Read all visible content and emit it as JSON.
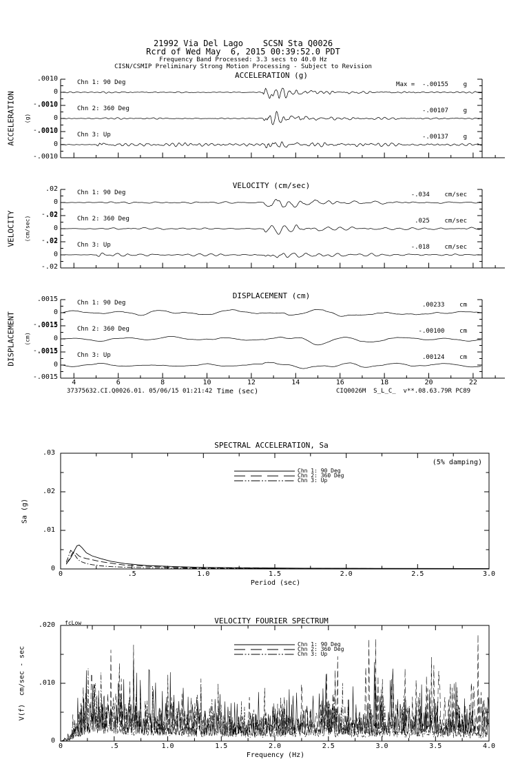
{
  "header": {
    "line1": "21992 Via Del Lago    SCSN Sta Q0026",
    "line2": "Rcrd of Wed May  6, 2015 00:39:52.0 PDT",
    "line3": "Frequency Band Processed: 3.3 secs to 40.0 Hz",
    "line4": "CISN/CSMIP Preliminary Strong Motion Processing - Subject to Revision"
  },
  "footer": {
    "left": "37375632.CI.Q0026.01. 05/06/15 01:21:42",
    "right": "CIQ0026M  S_L_C_  v**.08.63.79R PC89"
  },
  "time_axis": {
    "label": "Time (sec)",
    "major_ticks": [
      4,
      6,
      8,
      10,
      12,
      14,
      16,
      18,
      20,
      22
    ],
    "range_sec": [
      3.4,
      23.4
    ]
  },
  "chart_data": [
    {
      "id": "acceleration",
      "type": "line",
      "title": "ACCELERATION (g)",
      "ylabel": "ACCELERATION",
      "yunits": "(g)",
      "ytick_labels": [
        ".0010",
        "0",
        "-.0010"
      ],
      "ylim": [
        -0.001,
        0.001
      ],
      "channels": [
        {
          "label": "Chn 1: 90 Deg",
          "max_label": "Max =  -.00155    g",
          "max_value": -0.00155,
          "unit": "g",
          "synthesis": {
            "seed": 101,
            "f0": 3.2,
            "zeta": 0.15,
            "dt": 0.02,
            "base": 0.5,
            "bursts": [
              [
                5.1,
                0.5,
                4
              ],
              [
                12.52,
                13,
                0.8
              ],
              [
                12.6,
                2.4,
                6
              ]
            ]
          }
        },
        {
          "label": "Chn 2: 360 Deg",
          "max_label": "-.00107    g",
          "max_value": -0.00107,
          "unit": "g",
          "synthesis": {
            "seed": 102,
            "f0": 3.2,
            "zeta": 0.15,
            "dt": 0.02,
            "base": 0.5,
            "bursts": [
              [
                5.1,
                0.5,
                4
              ],
              [
                12.52,
                11,
                0.8
              ],
              [
                12.6,
                2.2,
                6
              ]
            ]
          }
        },
        {
          "label": "Chn 3: Up",
          "max_label": "-.00137    g",
          "max_value": -0.00137,
          "unit": "g",
          "synthesis": {
            "seed": 103,
            "f0": 3.4,
            "zeta": 0.15,
            "dt": 0.02,
            "base": 0.45,
            "bursts": [
              [
                5.02,
                12,
                0.3
              ],
              [
                5.05,
                1.7,
                25
              ],
              [
                12.6,
                6,
                0.8
              ],
              [
                12.6,
                1.3,
                6
              ]
            ]
          }
        }
      ]
    },
    {
      "id": "velocity",
      "type": "line",
      "title": "VELOCITY (cm/sec)",
      "ylabel": "VELOCITY",
      "yunits": "(cm/sec)",
      "ytick_labels": [
        ".02",
        "0",
        "-.02"
      ],
      "ylim": [
        -0.02,
        0.02
      ],
      "channels": [
        {
          "label": "Chn 1: 90 Deg",
          "max_label": "-.034    cm/sec",
          "max_value": -0.034,
          "unit": "cm/sec",
          "synthesis": {
            "seed": 201,
            "f0": 1.7,
            "zeta": 0.12,
            "dt": 0.02,
            "base": 0.5,
            "bursts": [
              [
                5.2,
                0.9,
                6
              ],
              [
                12.55,
                12,
                1.1
              ],
              [
                12.7,
                2.6,
                7
              ]
            ]
          }
        },
        {
          "label": "Chn 2: 360 Deg",
          "max_label": " .025    cm/sec",
          "max_value": 0.025,
          "unit": "cm/sec",
          "synthesis": {
            "seed": 202,
            "f0": 1.7,
            "zeta": 0.12,
            "dt": 0.02,
            "base": 0.5,
            "bursts": [
              [
                5.2,
                0.9,
                6
              ],
              [
                12.55,
                11,
                1.1
              ],
              [
                12.7,
                2.6,
                7
              ]
            ]
          }
        },
        {
          "label": "Chn 3: Up",
          "max_label": "-.018    cm/sec",
          "max_value": -0.018,
          "unit": "cm/sec",
          "synthesis": {
            "seed": 203,
            "f0": 2.0,
            "zeta": 0.13,
            "dt": 0.02,
            "base": 0.4,
            "bursts": [
              [
                5.02,
                10.5,
                0.35
              ],
              [
                5.05,
                1.4,
                10
              ],
              [
                12.6,
                6.5,
                0.9
              ],
              [
                12.7,
                1.7,
                7
              ]
            ]
          }
        }
      ]
    },
    {
      "id": "displacement",
      "type": "line",
      "title": "DISPLACEMENT (cm)",
      "ylabel": "DISPLACEMENT",
      "yunits": "(cm)",
      "ytick_labels": [
        ".0015",
        "0",
        "-.0015"
      ],
      "ylim": [
        -0.0015,
        0.0015
      ],
      "xlabel": "Time (sec)",
      "channels": [
        {
          "label": "Chn 1: 90 Deg",
          "max_label": " .00233    cm",
          "max_value": 0.00233,
          "unit": "cm",
          "synthesis": {
            "seed": 301,
            "f0": 0.42,
            "zeta": 0.3,
            "dt": 0.04,
            "base": 3.5,
            "bursts": [
              [
                12.5,
                4,
                4
              ]
            ]
          }
        },
        {
          "label": "Chn 2: 360 Deg",
          "max_label": "-.00100    cm",
          "max_value": -0.001,
          "unit": "cm",
          "synthesis": {
            "seed": 302,
            "f0": 0.42,
            "zeta": 0.3,
            "dt": 0.04,
            "base": 3.5,
            "bursts": [
              [
                12.5,
                4,
                4
              ]
            ]
          }
        },
        {
          "label": "Chn 3: Up",
          "max_label": " .00124    cm",
          "max_value": 0.00124,
          "unit": "cm",
          "synthesis": {
            "seed": 303,
            "f0": 0.5,
            "zeta": 0.3,
            "dt": 0.04,
            "base": 2.4,
            "bursts": [
              [
                5.0,
                1.4,
                3
              ],
              [
                12.5,
                3.6,
                4
              ]
            ]
          }
        }
      ]
    },
    {
      "id": "spectral_acceleration",
      "type": "line",
      "title": "SPECTRAL ACCELERATION, Sa",
      "annotation": "(5% damping)",
      "xlabel": "Period (sec)",
      "ylabel": "Sa (g)",
      "xlim": [
        0,
        3.0
      ],
      "ylim": [
        0,
        0.03
      ],
      "xtick_labels": [
        "0",
        ".5",
        "1.0",
        "1.5",
        "2.0",
        "2.5",
        "3.0"
      ],
      "ytick_labels": [
        "0",
        ".01",
        ".02",
        ".03"
      ],
      "legend": [
        {
          "label": "Chn 1: 90 Deg",
          "style": "solid"
        },
        {
          "label": "Chn 2: 360 Deg",
          "style": "long-dash"
        },
        {
          "label": "Chn 3: Up",
          "style": "dash-dot"
        }
      ],
      "periods": [
        0.04,
        0.055,
        0.07,
        0.085,
        0.1,
        0.115,
        0.13,
        0.15,
        0.18,
        0.22,
        0.28,
        0.35,
        0.45,
        0.6,
        0.8,
        1.0,
        1.3,
        1.7,
        2.2,
        3.0
      ],
      "series": [
        {
          "name": "Chn 1: 90 Deg",
          "values": [
            0.0015,
            0.002,
            0.0028,
            0.0038,
            0.005,
            0.006,
            0.0062,
            0.0055,
            0.0042,
            0.0034,
            0.0027,
            0.002,
            0.0014,
            0.0009,
            0.0006,
            0.0004,
            0.0003,
            0.0002,
            0.00015,
            0.0001
          ]
        },
        {
          "name": "Chn 2: 360 Deg",
          "values": [
            0.0012,
            0.0022,
            0.0032,
            0.0043,
            0.0045,
            0.0038,
            0.0033,
            0.003,
            0.0027,
            0.0024,
            0.0019,
            0.0015,
            0.001,
            0.0007,
            0.0004,
            0.0003,
            0.0002,
            0.00015,
            0.0001,
            8e-05
          ]
        },
        {
          "name": "Chn 3: Up",
          "values": [
            0.0018,
            0.0032,
            0.0048,
            0.0044,
            0.0036,
            0.0028,
            0.0022,
            0.0018,
            0.0014,
            0.0011,
            0.0008,
            0.0006,
            0.00045,
            0.0003,
            0.0002,
            0.00015,
            0.0001,
            8e-05,
            6e-05,
            5e-05
          ]
        }
      ]
    },
    {
      "id": "velocity_fourier_spectrum",
      "type": "line",
      "title": "VELOCITY FOURIER SPECTRUM",
      "annotation": "fcLow",
      "xlabel": "Frequency (Hz)",
      "ylabel": "V(f)  cm/sec - sec",
      "xlim": [
        0,
        4.0
      ],
      "ylim": [
        0,
        0.02
      ],
      "xtick_labels": [
        "0",
        ".5",
        "1.0",
        "1.5",
        "2.0",
        "2.5",
        "3.0",
        "3.5",
        "4.0"
      ],
      "ytick_labels": [
        "0",
        ".010",
        ".020"
      ],
      "legend": [
        {
          "label": "Chn 1: 90 Deg",
          "style": "solid"
        },
        {
          "label": "Chn 2: 360 Deg",
          "style": "long-dash"
        },
        {
          "label": "Chn 3: Up",
          "style": "dash-dot"
        }
      ],
      "envelope_freqs": [
        0,
        0.08,
        0.15,
        0.25,
        0.35,
        0.5,
        0.7,
        0.9,
        1.2,
        1.5,
        1.8,
        2.1,
        2.4,
        2.7,
        3.0,
        3.3,
        3.6,
        4.0
      ],
      "series": [
        {
          "name": "Chn 1: 90 Deg",
          "seed": 21,
          "envelope": [
            0,
            0.0004,
            0.002,
            0.0045,
            0.0055,
            0.005,
            0.004,
            0.0038,
            0.0035,
            0.003,
            0.0028,
            0.0035,
            0.0045,
            0.0032,
            0.0035,
            0.003,
            0.0028,
            0.0025
          ]
        },
        {
          "name": "Chn 2: 360 Deg",
          "seed": 22,
          "envelope": [
            0,
            0.0004,
            0.0018,
            0.004,
            0.005,
            0.0045,
            0.0035,
            0.003,
            0.0032,
            0.0028,
            0.0026,
            0.003,
            0.0035,
            0.004,
            0.0038,
            0.0045,
            0.005,
            0.0048
          ]
        },
        {
          "name": "Chn 3: Up",
          "seed": 23,
          "envelope": [
            0,
            0.0005,
            0.0025,
            0.005,
            0.0045,
            0.004,
            0.003,
            0.0028,
            0.0025,
            0.0022,
            0.002,
            0.0022,
            0.0025,
            0.002,
            0.0022,
            0.002,
            0.0018,
            0.0015
          ]
        }
      ]
    }
  ]
}
